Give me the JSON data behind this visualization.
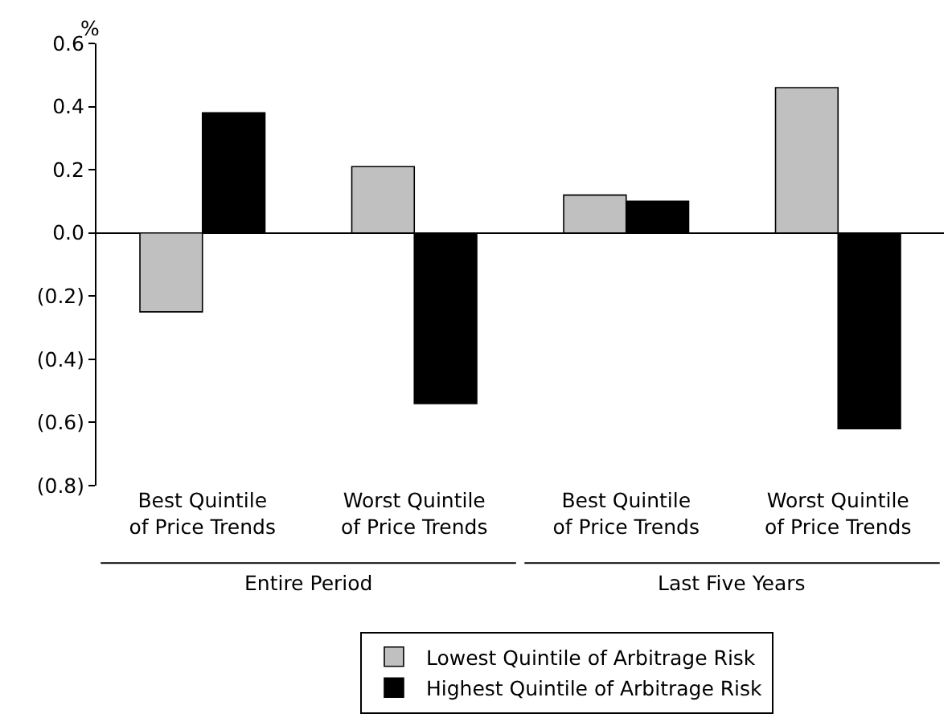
{
  "chart_data": {
    "type": "bar",
    "ylabel": "%",
    "categories": [
      "Best Quintile\nof Price Trends",
      "Worst Quintile\nof Price Trends",
      "Best Quintile\nof Price Trends",
      "Worst Quintile\nof Price Trends"
    ],
    "series": [
      {
        "name": "Lowest Quintile of Arbitrage Risk",
        "color": "#c0c0c0",
        "values": [
          -0.25,
          0.21,
          0.12,
          0.46
        ]
      },
      {
        "name": "Highest Quintile of Arbitrage Risk",
        "color": "#000000",
        "values": [
          0.38,
          -0.54,
          0.1,
          -0.62
        ]
      }
    ],
    "annotations": [
      "Entire Period",
      "Last Five Years"
    ],
    "ylim": [
      -0.8,
      0.6
    ],
    "yticks": [
      {
        "value": -0.8,
        "label": "(0.8)"
      },
      {
        "value": -0.6,
        "label": "(0.6)"
      },
      {
        "value": -0.4,
        "label": "(0.4)"
      },
      {
        "value": -0.2,
        "label": "(0.2)"
      },
      {
        "value": 0,
        "label": "0.0"
      },
      {
        "value": 0.2,
        "label": "0.2"
      },
      {
        "value": 0.4,
        "label": "0.4"
      },
      {
        "value": 0.6,
        "label": "0.6"
      }
    ],
    "legend": "bottom"
  }
}
